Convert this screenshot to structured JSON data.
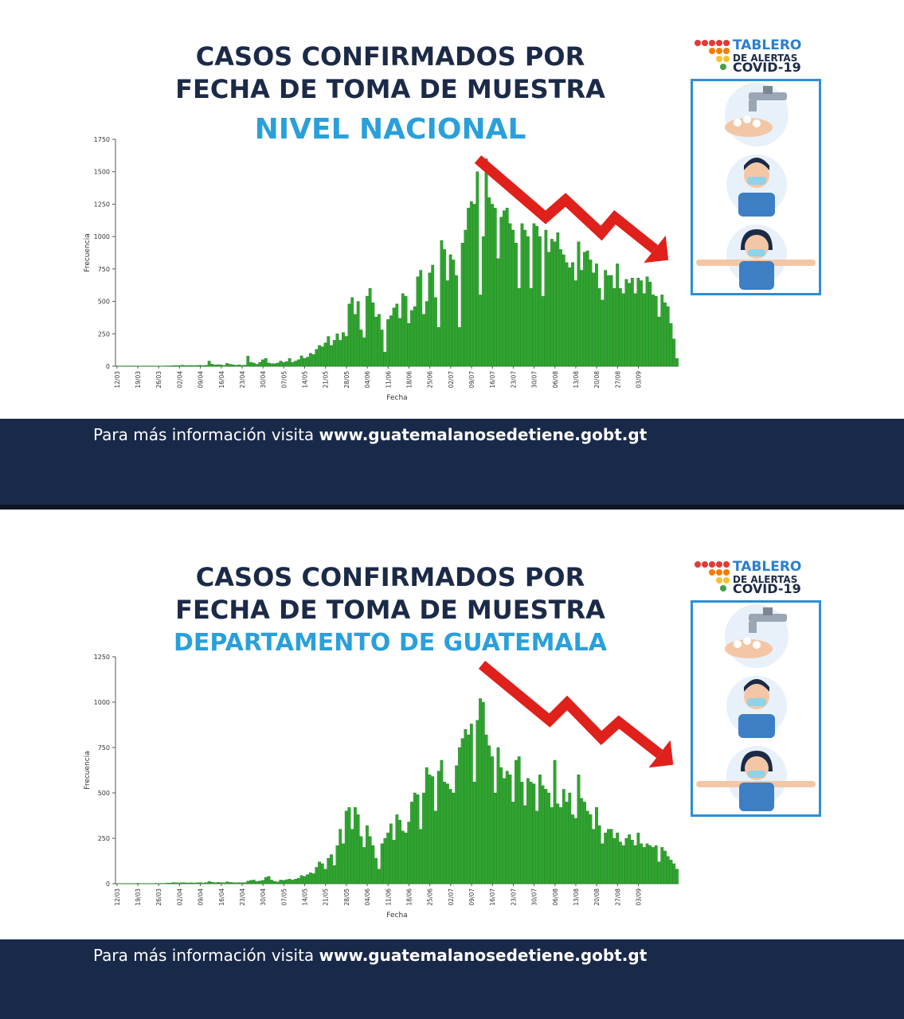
{
  "panels": [
    {
      "title_line1": "CASOS CONFIRMADOS POR",
      "title_line2": "FECHA DE TOMA DE MUESTRA",
      "subtitle": "NIVEL NACIONAL",
      "logo": {
        "line1": "TABLERO",
        "line2": "DE ALERTAS",
        "line3": "COVID-19"
      },
      "footer": {
        "prefix": "Para más información visita ",
        "url": "www.guatemalanosedetiene.gobt.gt"
      }
    },
    {
      "title_line1": "CASOS CONFIRMADOS POR",
      "title_line2": "FECHA DE TOMA DE MUESTRA",
      "subtitle": "DEPARTAMENTO DE GUATEMALA",
      "logo": {
        "line1": "TABLERO",
        "line2": "DE ALERTAS",
        "line3": "COVID-19"
      },
      "footer": {
        "prefix": "Para más información visita ",
        "url": "www.guatemalanosedetiene.gobt.gt"
      }
    }
  ],
  "icons": [
    "handwashing-icon",
    "mask-wearing-man-icon",
    "distancing-woman-icon",
    "downward-trend-arrow-icon"
  ],
  "colors": {
    "bar": "#2ea62e",
    "bar_edge": "#1d7a1d",
    "title": "#1b2a47",
    "subtitle": "#2aa0db",
    "footer": "#19294a",
    "arrow": "#e0201b"
  },
  "chart_data": [
    {
      "type": "bar",
      "title": "NIVEL NACIONAL",
      "xlabel": "Fecha",
      "ylabel": "Frecuencia",
      "ylim": [
        0,
        1750
      ],
      "yticks": [
        0,
        250,
        500,
        750,
        1000,
        1250,
        1500,
        1750
      ],
      "xtick_labels": [
        "12/03",
        "19/03",
        "26/03",
        "02/04",
        "09/04",
        "16/04",
        "23/04",
        "30/04",
        "07/05",
        "14/05",
        "21/05",
        "28/05",
        "04/06",
        "11/06",
        "18/06",
        "25/06",
        "02/07",
        "09/07",
        "16/07",
        "23/07",
        "30/07",
        "06/08",
        "13/08",
        "20/08",
        "27/08",
        "03/09"
      ],
      "start_date": "12/03",
      "series": [
        {
          "values": [
            2,
            1,
            1,
            2,
            1,
            2,
            1,
            2,
            1,
            1,
            2,
            1,
            2,
            1,
            1,
            2,
            2,
            3,
            3,
            5,
            5,
            5,
            8,
            5,
            5,
            6,
            5,
            6,
            7,
            5,
            7,
            40,
            16,
            10,
            12,
            10,
            6,
            22,
            15,
            12,
            8,
            10,
            7,
            8,
            78,
            30,
            25,
            15,
            30,
            50,
            60,
            25,
            20,
            20,
            25,
            40,
            30,
            35,
            60,
            30,
            40,
            50,
            80,
            60,
            70,
            100,
            90,
            130,
            160,
            150,
            180,
            230,
            160,
            200,
            250,
            200,
            260,
            230,
            480,
            530,
            400,
            500,
            280,
            220,
            540,
            600,
            490,
            380,
            400,
            280,
            110,
            360,
            390,
            450,
            480,
            370,
            560,
            540,
            330,
            430,
            460,
            690,
            740,
            400,
            500,
            720,
            780,
            530,
            300,
            970,
            900,
            660,
            860,
            820,
            700,
            300,
            950,
            1050,
            1220,
            1270,
            1250,
            1500,
            550,
            1000,
            1600,
            1300,
            1250,
            1220,
            830,
            1150,
            1200,
            1220,
            1100,
            1050,
            950,
            600,
            1100,
            1050,
            1000,
            600,
            1100,
            1080,
            1000,
            540,
            1050,
            880,
            980,
            960,
            1030,
            900,
            860,
            800,
            760,
            800,
            660,
            960,
            740,
            880,
            890,
            820,
            720,
            790,
            600,
            510,
            740,
            700,
            700,
            600,
            790,
            600,
            560,
            670,
            640,
            680,
            560,
            680,
            660,
            560,
            690,
            650,
            550,
            540,
            380,
            550,
            490,
            460,
            330,
            210,
            60
          ]
        }
      ]
    },
    {
      "type": "bar",
      "title": "DEPARTAMENTO DE GUATEMALA",
      "xlabel": "Fecha",
      "ylabel": "Frecuencia",
      "ylim": [
        0,
        1250
      ],
      "yticks": [
        0,
        250,
        500,
        750,
        1000,
        1250
      ],
      "xtick_labels": [
        "12/03",
        "19/03",
        "26/03",
        "02/04",
        "09/04",
        "16/04",
        "23/04",
        "30/04",
        "07/05",
        "14/05",
        "21/05",
        "28/05",
        "04/06",
        "11/06",
        "18/06",
        "25/06",
        "02/07",
        "09/07",
        "16/07",
        "23/07",
        "30/07",
        "06/08",
        "13/08",
        "20/08",
        "27/08",
        "03/09"
      ],
      "start_date": "12/03",
      "series": [
        {
          "values": [
            1,
            1,
            1,
            1,
            1,
            1,
            1,
            2,
            1,
            1,
            1,
            1,
            1,
            2,
            1,
            2,
            2,
            3,
            4,
            6,
            5,
            4,
            6,
            5,
            4,
            5,
            4,
            5,
            6,
            4,
            6,
            12,
            8,
            6,
            7,
            6,
            5,
            10,
            8,
            6,
            5,
            6,
            5,
            6,
            14,
            18,
            20,
            12,
            15,
            18,
            35,
            40,
            20,
            12,
            10,
            20,
            18,
            22,
            25,
            20,
            25,
            30,
            45,
            40,
            50,
            60,
            55,
            90,
            120,
            110,
            80,
            140,
            160,
            100,
            210,
            300,
            220,
            400,
            420,
            300,
            420,
            380,
            260,
            200,
            320,
            260,
            210,
            140,
            80,
            220,
            250,
            280,
            330,
            240,
            380,
            350,
            290,
            280,
            340,
            450,
            500,
            490,
            300,
            500,
            640,
            600,
            590,
            400,
            620,
            680,
            560,
            550,
            520,
            500,
            650,
            750,
            800,
            850,
            820,
            880,
            560,
            900,
            1020,
            1000,
            820,
            760,
            700,
            500,
            750,
            640,
            580,
            620,
            600,
            450,
            680,
            700,
            560,
            430,
            580,
            560,
            550,
            400,
            600,
            540,
            520,
            500,
            420,
            680,
            440,
            420,
            520,
            450,
            500,
            380,
            360,
            600,
            470,
            450,
            400,
            380,
            300,
            420,
            320,
            220,
            280,
            300,
            300,
            250,
            280,
            230,
            210,
            250,
            270,
            240,
            210,
            280,
            220,
            200,
            220,
            210,
            200,
            210,
            120,
            200,
            180,
            150,
            130,
            110,
            80
          ]
        }
      ]
    }
  ]
}
